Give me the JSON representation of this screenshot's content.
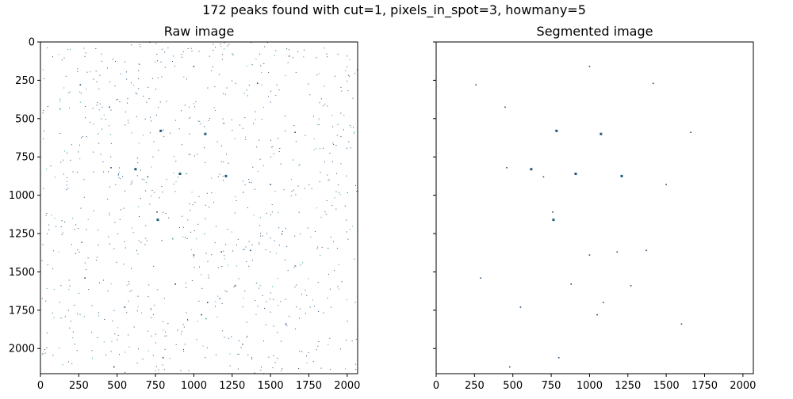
{
  "chart_data": {
    "suptitle": "172 peaks found with cut=1, pixels_in_spot=3, howmany=5",
    "panels": [
      {
        "title": "Raw image",
        "type": "image",
        "xlim": [
          0,
          2068
        ],
        "ylim": [
          2164,
          0
        ],
        "xticks": [
          0,
          250,
          500,
          750,
          1000,
          1250,
          1500,
          1750,
          2000
        ],
        "yticks": [
          0,
          250,
          500,
          750,
          1000,
          1250,
          1500,
          1750,
          2000
        ],
        "show_ytick_labels": true,
        "random_noise_count": 900,
        "noise_seed": 12345,
        "peaks": [
          [
            785,
            580,
            2
          ],
          [
            1075,
            600,
            2
          ],
          [
            620,
            830,
            2
          ],
          [
            910,
            860,
            2
          ],
          [
            1210,
            875,
            2
          ],
          [
            760,
            1110,
            1
          ],
          [
            765,
            1160,
            2
          ],
          [
            450,
            425,
            1
          ],
          [
            460,
            820,
            1
          ],
          [
            700,
            880,
            1
          ],
          [
            1370,
            1360,
            1
          ],
          [
            1500,
            930,
            1
          ],
          [
            1660,
            590,
            1
          ],
          [
            1000,
            160,
            1
          ],
          [
            1415,
            270,
            1
          ],
          [
            260,
            280,
            1
          ],
          [
            550,
            1730,
            1
          ],
          [
            1090,
            1700,
            1
          ],
          [
            1050,
            1780,
            1
          ],
          [
            1600,
            1840,
            1
          ],
          [
            800,
            2060,
            1
          ],
          [
            480,
            2120,
            1
          ],
          [
            1000,
            1390,
            1
          ],
          [
            1180,
            1370,
            1
          ],
          [
            880,
            1580,
            1
          ],
          [
            1270,
            1590,
            1
          ],
          [
            290,
            1540,
            1
          ]
        ],
        "cmap": {
          "background": "#ffffff",
          "low": "#1f4e79",
          "high": "#21a08a"
        }
      },
      {
        "title": "Segmented image",
        "type": "image",
        "xlim": [
          0,
          2068
        ],
        "ylim": [
          2164,
          0
        ],
        "xticks": [
          0,
          250,
          500,
          750,
          1000,
          1250,
          1500,
          1750,
          2000
        ],
        "yticks": [
          0,
          250,
          500,
          750,
          1000,
          1250,
          1500,
          1750,
          2000
        ],
        "show_ytick_labels": false,
        "random_noise_count": 0,
        "noise_seed": 0,
        "peaks": [
          [
            785,
            580,
            2
          ],
          [
            1075,
            600,
            2
          ],
          [
            620,
            830,
            2
          ],
          [
            910,
            860,
            2
          ],
          [
            1210,
            875,
            2
          ],
          [
            760,
            1110,
            1
          ],
          [
            765,
            1160,
            2
          ],
          [
            450,
            425,
            1
          ],
          [
            460,
            820,
            1
          ],
          [
            700,
            880,
            1
          ],
          [
            1370,
            1360,
            1
          ],
          [
            1500,
            930,
            1
          ],
          [
            1660,
            590,
            1
          ],
          [
            1000,
            160,
            1
          ],
          [
            1415,
            270,
            1
          ],
          [
            260,
            280,
            1
          ],
          [
            550,
            1730,
            1
          ],
          [
            1090,
            1700,
            1
          ],
          [
            1050,
            1780,
            1
          ],
          [
            1600,
            1840,
            1
          ],
          [
            800,
            2060,
            1
          ],
          [
            480,
            2120,
            1
          ],
          [
            1000,
            1390,
            1
          ],
          [
            1180,
            1370,
            1
          ],
          [
            880,
            1580,
            1
          ],
          [
            1270,
            1590,
            1
          ],
          [
            290,
            1540,
            1
          ]
        ],
        "cmap": {
          "background": "#ffffff",
          "low": "#1f4e79",
          "high": "#21a08a"
        }
      }
    ]
  }
}
